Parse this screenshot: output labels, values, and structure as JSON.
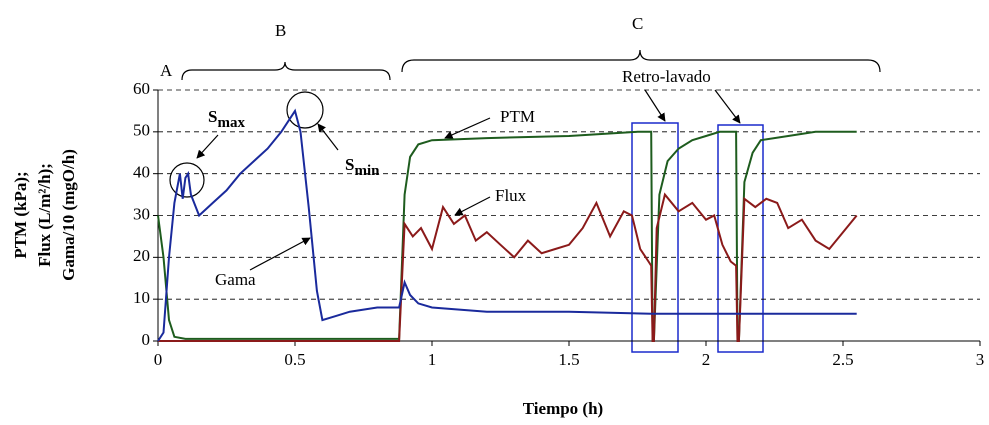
{
  "chart_data": {
    "type": "line",
    "xlabel": "Tiempo (h)",
    "ylabel": [
      "PTM (kPa);",
      "Flux (L/m²/h);",
      "Gama/10 (mgO/h)"
    ],
    "xlim": [
      0,
      3
    ],
    "xticks": [
      0,
      0.5,
      1,
      1.5,
      2,
      2.5,
      3
    ],
    "ylim": [
      0,
      60
    ],
    "yticks": [
      0,
      10,
      20,
      30,
      40,
      50,
      60
    ],
    "grid": true,
    "series": [
      {
        "name": "PTM",
        "color": "#1e5c1e",
        "x": [
          0,
          0.02,
          0.04,
          0.06,
          0.1,
          0.5,
          0.88,
          0.9,
          0.92,
          0.95,
          1.0,
          1.2,
          1.5,
          1.75,
          1.8,
          1.805,
          1.81,
          1.83,
          1.86,
          1.9,
          1.95,
          2.0,
          2.05,
          2.11,
          2.115,
          2.12,
          2.14,
          2.17,
          2.2,
          2.3,
          2.4,
          2.55
        ],
        "values": [
          30,
          20,
          5,
          1,
          0.5,
          0.5,
          0.5,
          35,
          44,
          47,
          48,
          48.5,
          49,
          50,
          50,
          0,
          0,
          35,
          43,
          46,
          48,
          49,
          50,
          50,
          0,
          0,
          38,
          45,
          48,
          49,
          50,
          50
        ]
      },
      {
        "name": "Flux",
        "color": "#8b1a1a",
        "x": [
          0,
          0.88,
          0.9,
          0.93,
          0.96,
          1.0,
          1.04,
          1.08,
          1.12,
          1.16,
          1.2,
          1.25,
          1.3,
          1.35,
          1.4,
          1.45,
          1.5,
          1.55,
          1.6,
          1.65,
          1.7,
          1.73,
          1.76,
          1.79,
          1.8,
          1.805,
          1.81,
          1.82,
          1.85,
          1.9,
          1.95,
          2.0,
          2.03,
          2.06,
          2.09,
          2.11,
          2.115,
          2.12,
          2.14,
          2.18,
          2.22,
          2.26,
          2.3,
          2.35,
          2.4,
          2.45,
          2.5,
          2.55
        ],
        "values": [
          0,
          0,
          28,
          25,
          27,
          22,
          32,
          28,
          30,
          24,
          26,
          23,
          20,
          24,
          21,
          22,
          23,
          27,
          33,
          25,
          31,
          30,
          22,
          19,
          18,
          0,
          0,
          27,
          35,
          31,
          33,
          29,
          30,
          23,
          19,
          18,
          0,
          0,
          34,
          32,
          34,
          33,
          27,
          29,
          24,
          22,
          26,
          30
        ]
      },
      {
        "name": "Gama",
        "color": "#1a2a9c",
        "x": [
          0,
          0.02,
          0.04,
          0.06,
          0.08,
          0.09,
          0.1,
          0.11,
          0.12,
          0.15,
          0.2,
          0.25,
          0.3,
          0.35,
          0.4,
          0.45,
          0.48,
          0.5,
          0.52,
          0.55,
          0.58,
          0.6,
          0.65,
          0.7,
          0.8,
          0.88,
          0.9,
          0.92,
          0.95,
          1.0,
          1.2,
          1.5,
          1.8,
          2.0,
          2.3,
          2.55
        ],
        "values": [
          0,
          2,
          20,
          33,
          40,
          34,
          39,
          40,
          35,
          30,
          33,
          36,
          40,
          43,
          46,
          50,
          53,
          55,
          50,
          32,
          12,
          5,
          6,
          7,
          8,
          8,
          14,
          11,
          9,
          8,
          7,
          7,
          6.5,
          6.5,
          6.5,
          6.5
        ]
      }
    ],
    "annotations": [
      {
        "text": "A"
      },
      {
        "text": "B"
      },
      {
        "text": "C"
      },
      {
        "text": "Retro-lavado"
      },
      {
        "text": "S",
        "sub": "max"
      },
      {
        "text": "S",
        "sub": "min"
      }
    ]
  }
}
